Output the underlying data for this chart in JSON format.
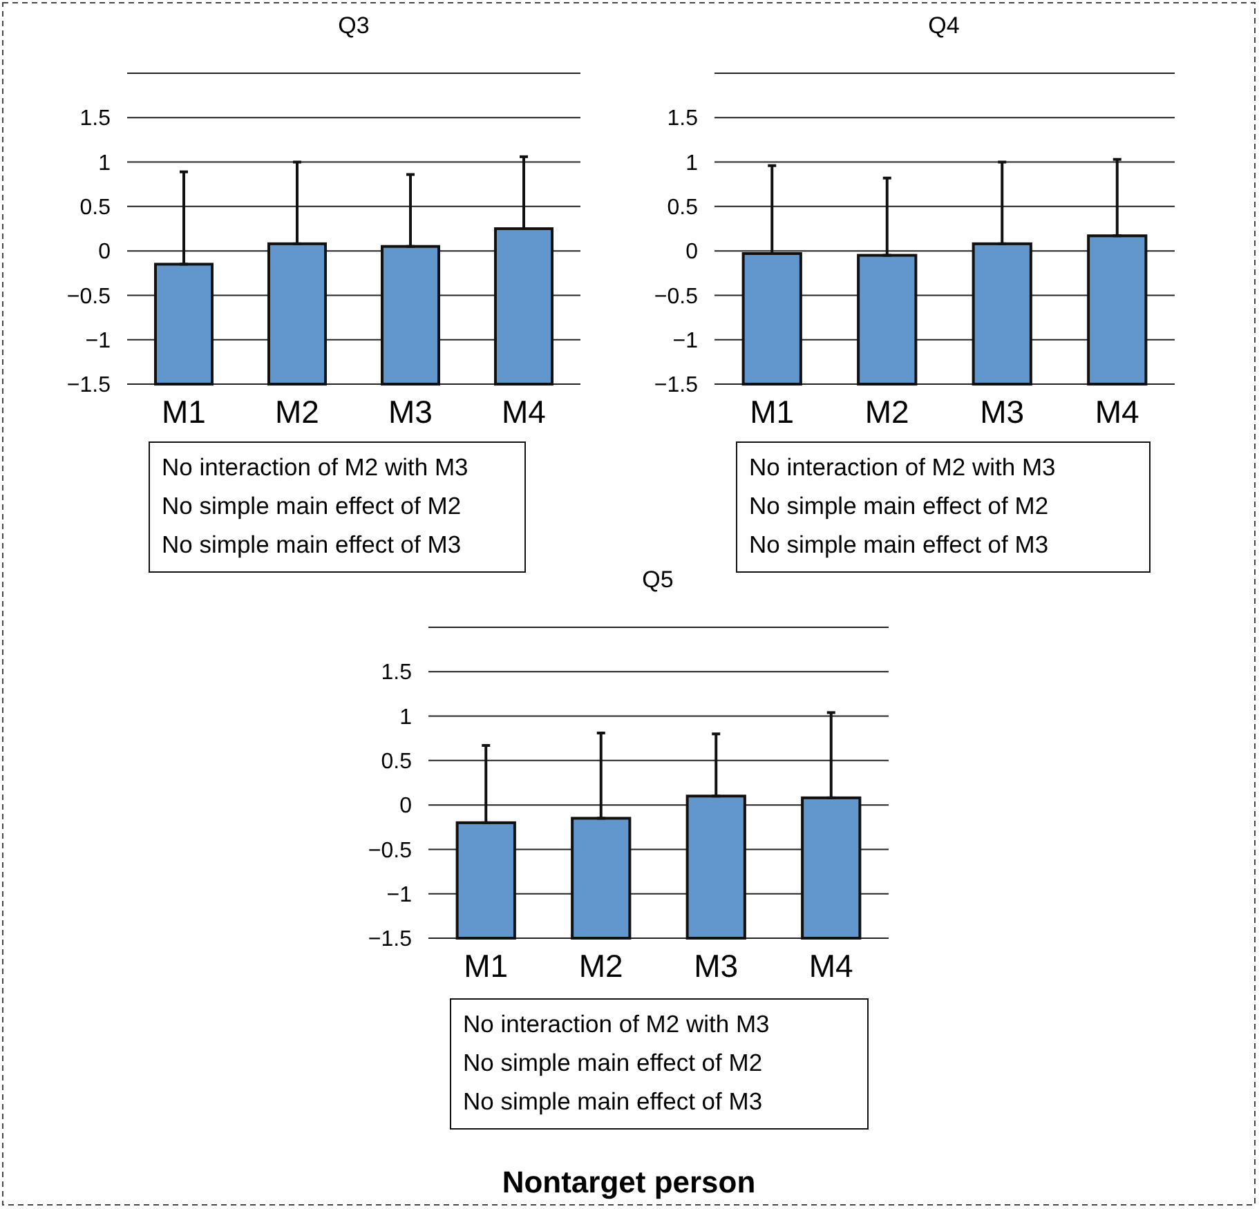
{
  "chart_data": [
    {
      "type": "bar",
      "title": "Q3",
      "categories": [
        "M1",
        "M2",
        "M3",
        "M4"
      ],
      "color": "#6197cd",
      "base": [
        -1.5,
        -1.5,
        -1.5,
        -1.5
      ],
      "values": [
        1.35,
        1.58,
        1.55,
        1.75
      ],
      "errors": [
        [
          -0.15,
          0.89
        ],
        [
          0.08,
          1.0
        ],
        [
          0.05,
          0.86
        ],
        [
          0.25,
          1.06
        ]
      ],
      "ylim": [
        -1.5,
        2
      ],
      "yticks": [
        {
          "value": -1.5,
          "label": "−1.5"
        },
        {
          "value": -1,
          "label": "−1"
        },
        {
          "value": -0.5,
          "label": "−0.5"
        },
        0,
        0.5,
        1,
        1.5,
        {
          "value": 2,
          "label": null
        }
      ],
      "grid": "y",
      "annotations": [
        "No interaction of M2 with M3",
        "No simple main effect of M2",
        "No simple main effect of M3"
      ]
    },
    {
      "type": "bar",
      "title": "Q4",
      "categories": [
        "M1",
        "M2",
        "M3",
        "M4"
      ],
      "color": "#6197cd",
      "base": [
        -1.5,
        -1.5,
        -1.5,
        -1.5
      ],
      "values": [
        1.47,
        1.45,
        1.58,
        1.67
      ],
      "errors": [
        [
          -0.03,
          0.96
        ],
        [
          -0.05,
          0.82
        ],
        [
          0.08,
          1.0
        ],
        [
          0.17,
          1.03
        ]
      ],
      "ylim": [
        -1.5,
        2
      ],
      "yticks": [
        {
          "value": -1.5,
          "label": "−1.5"
        },
        {
          "value": -1,
          "label": "−1"
        },
        {
          "value": -0.5,
          "label": "−0.5"
        },
        0,
        0.5,
        1,
        1.5,
        {
          "value": 2,
          "label": null
        }
      ],
      "grid": "y",
      "annotations": [
        "No interaction of M2 with M3",
        "No simple main effect of M2",
        "No simple main effect of M3"
      ]
    },
    {
      "type": "bar",
      "title": "Q5",
      "categories": [
        "M1",
        "M2",
        "M3",
        "M4"
      ],
      "color": "#6197cd",
      "base": [
        -1.5,
        -1.5,
        -1.5,
        -1.5
      ],
      "values": [
        1.3,
        1.35,
        1.6,
        1.58
      ],
      "errors": [
        [
          -0.2,
          0.67
        ],
        [
          -0.15,
          0.81
        ],
        [
          0.1,
          0.8
        ],
        [
          0.08,
          1.04
        ]
      ],
      "ylim": [
        -1.5,
        2
      ],
      "yticks": [
        {
          "value": -1.5,
          "label": "−1.5"
        },
        {
          "value": -1,
          "label": "−1"
        },
        {
          "value": -0.5,
          "label": "−0.5"
        },
        0,
        0.5,
        1,
        1.5,
        {
          "value": 2,
          "label": null
        }
      ],
      "grid": "y",
      "annotations": [
        "No interaction of M2 with M3",
        "No simple main effect of M2",
        "No simple main effect of M3"
      ]
    },
    {
      "type": "other",
      "title": "Nontarget person"
    }
  ]
}
